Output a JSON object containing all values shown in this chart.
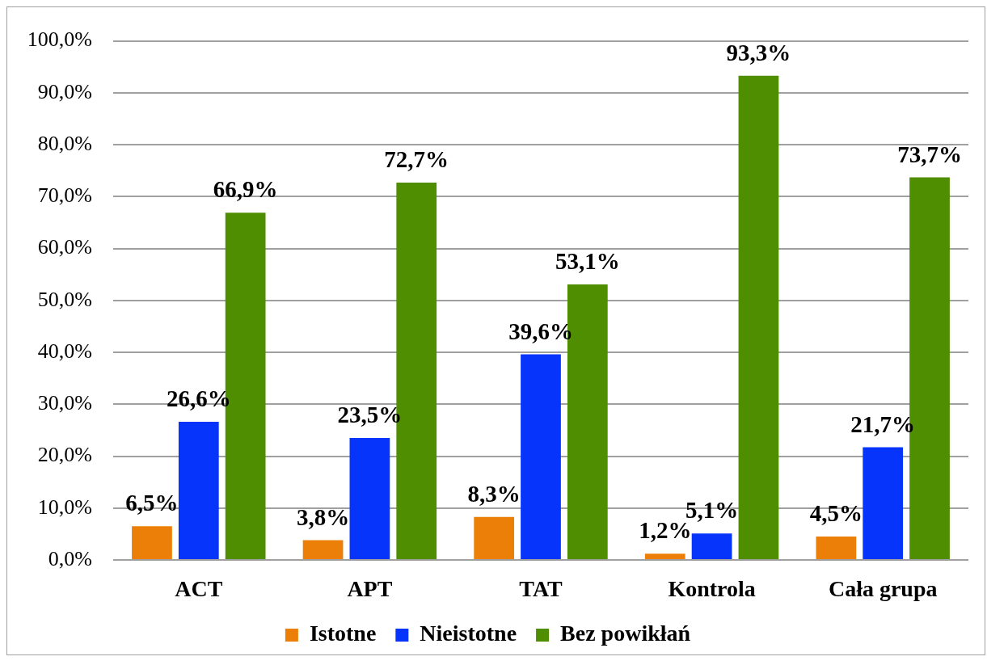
{
  "chart_data": {
    "type": "bar",
    "categories": [
      "ACT",
      "APT",
      "TAT",
      "Kontrola",
      "Cała grupa"
    ],
    "series": [
      {
        "name": "Istotne",
        "color": "#ec7f07",
        "values": [
          6.5,
          3.8,
          8.3,
          1.2,
          4.5
        ],
        "value_labels": [
          "6,5%",
          "3,8%",
          "8,3%",
          "1,2%",
          "4,5%"
        ]
      },
      {
        "name": "Nieistotne",
        "color": "#0634fb",
        "values": [
          26.6,
          23.5,
          39.6,
          5.1,
          21.7
        ],
        "value_labels": [
          "26,6%",
          "23,5%",
          "39,6%",
          "5,1%",
          "21,7%"
        ]
      },
      {
        "name": "Bez powikłań",
        "color": "#4f8d01",
        "values": [
          66.9,
          72.7,
          53.1,
          93.3,
          73.7
        ],
        "value_labels": [
          "66,9%",
          "72,7%",
          "53,1%",
          "93,3%",
          "73,7%"
        ]
      }
    ],
    "ylim": [
      0,
      100
    ],
    "yticks": [
      {
        "value": 0,
        "label": "0,0%"
      },
      {
        "value": 10,
        "label": "10,0%"
      },
      {
        "value": 20,
        "label": "20,0%"
      },
      {
        "value": 30,
        "label": "30,0%"
      },
      {
        "value": 40,
        "label": "40,0%"
      },
      {
        "value": 50,
        "label": "50,0%"
      },
      {
        "value": 60,
        "label": "60,0%"
      },
      {
        "value": 70,
        "label": "70,0%"
      },
      {
        "value": 80,
        "label": "80,0%"
      },
      {
        "value": 90,
        "label": "90,0%"
      },
      {
        "value": 100,
        "label": "100,0%"
      }
    ],
    "grid": "y",
    "legend": "bottom"
  }
}
